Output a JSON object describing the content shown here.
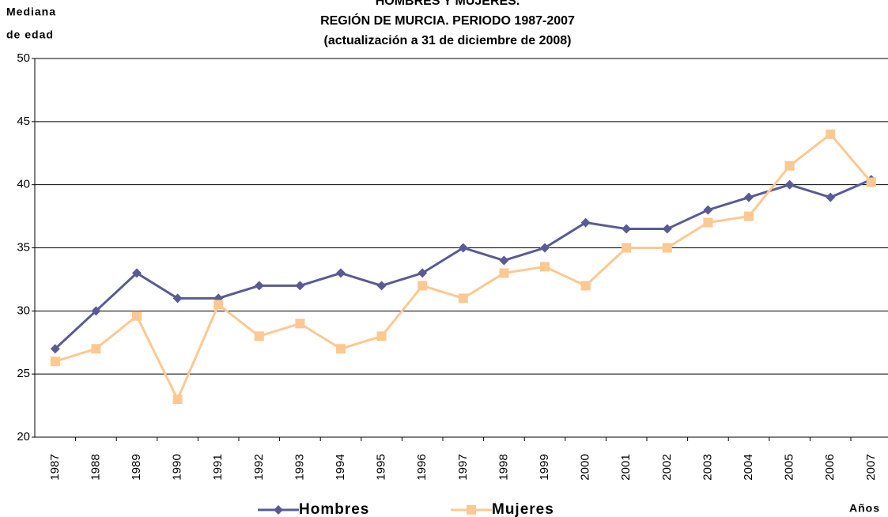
{
  "chart_data": {
    "type": "line",
    "title": [
      "HOMBRES Y MUJERES.",
      "REGIÓN DE MURCIA. PERIODO 1987-2007",
      "(actualización a 31 de diciembre de 2008)"
    ],
    "y_label": [
      "Mediana",
      "de edad"
    ],
    "x_label": "Años",
    "categories": [
      "1987",
      "1988",
      "1989",
      "1990",
      "1991",
      "1992",
      "1993",
      "1994",
      "1995",
      "1996",
      "1997",
      "1998",
      "1999",
      "2000",
      "2001",
      "2002",
      "2003",
      "2004",
      "2005",
      "2006",
      "2007"
    ],
    "series": [
      {
        "name": "Hombres",
        "color": "#5a5a96",
        "marker": "diamond",
        "values": [
          27,
          30,
          33,
          31,
          31,
          32,
          32,
          33,
          32,
          33,
          35,
          34,
          35,
          37,
          36.5,
          36.5,
          38,
          39,
          40,
          39,
          40.4
        ]
      },
      {
        "name": "Mujeres",
        "color": "#fdc891",
        "marker": "square",
        "values": [
          26,
          27,
          29.6,
          23,
          30.5,
          28,
          29,
          27,
          28,
          32,
          31,
          33,
          33.5,
          32,
          35,
          35,
          37,
          37.5,
          41.5,
          44,
          40.2
        ]
      }
    ],
    "ylim": [
      20,
      50
    ],
    "yticks": [
      20,
      25,
      30,
      35,
      40,
      45,
      50
    ],
    "grid": true
  }
}
